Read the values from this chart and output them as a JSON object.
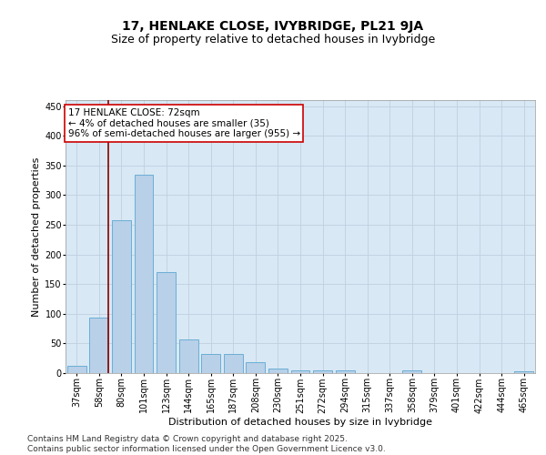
{
  "title": "17, HENLAKE CLOSE, IVYBRIDGE, PL21 9JA",
  "subtitle": "Size of property relative to detached houses in Ivybridge",
  "xlabel": "Distribution of detached houses by size in Ivybridge",
  "ylabel": "Number of detached properties",
  "categories": [
    "37sqm",
    "58sqm",
    "80sqm",
    "101sqm",
    "123sqm",
    "144sqm",
    "165sqm",
    "187sqm",
    "208sqm",
    "230sqm",
    "251sqm",
    "272sqm",
    "294sqm",
    "315sqm",
    "337sqm",
    "358sqm",
    "379sqm",
    "401sqm",
    "422sqm",
    "444sqm",
    "465sqm"
  ],
  "values": [
    13,
    93,
    257,
    335,
    170,
    57,
    32,
    32,
    18,
    8,
    5,
    5,
    4,
    0,
    0,
    4,
    0,
    0,
    0,
    0,
    3
  ],
  "bar_color": "#b8d0e8",
  "bar_edge_color": "#6baed6",
  "grid_color": "#c0d0e0",
  "background_color": "#d8e8f4",
  "vline_color": "#8b0000",
  "annotation_text": "17 HENLAKE CLOSE: 72sqm\n← 4% of detached houses are smaller (35)\n96% of semi-detached houses are larger (955) →",
  "annotation_box_color": "white",
  "annotation_box_edge": "#cc0000",
  "ylim": [
    0,
    460
  ],
  "yticks": [
    0,
    50,
    100,
    150,
    200,
    250,
    300,
    350,
    400,
    450
  ],
  "footer": "Contains HM Land Registry data © Crown copyright and database right 2025.\nContains public sector information licensed under the Open Government Licence v3.0.",
  "title_fontsize": 10,
  "subtitle_fontsize": 9,
  "xlabel_fontsize": 8,
  "ylabel_fontsize": 8,
  "tick_fontsize": 7,
  "annot_fontsize": 7.5,
  "footer_fontsize": 6.5
}
